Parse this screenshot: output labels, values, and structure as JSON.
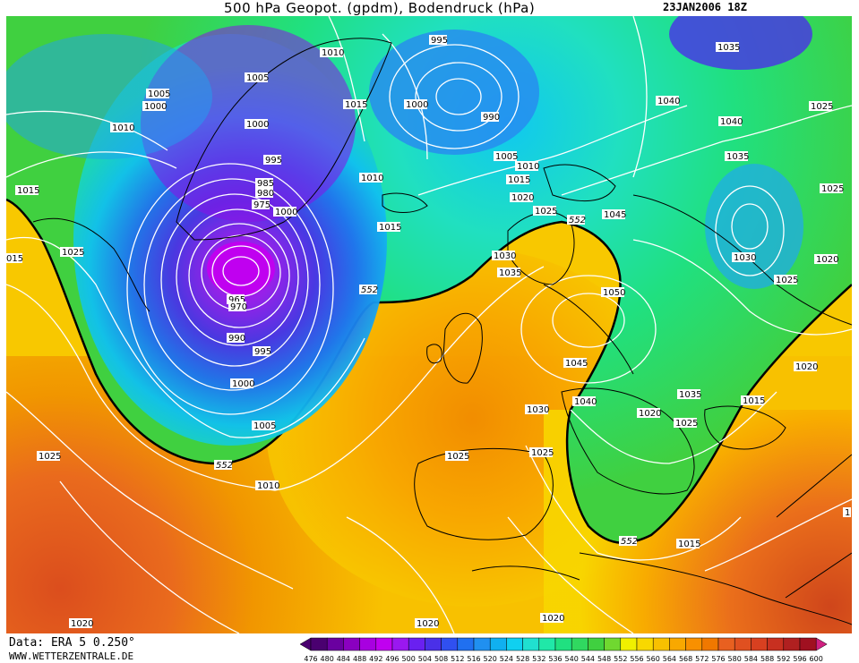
{
  "header": {
    "title": "500 hPa Geopot. (gpdm), Bodendruck (hPa)",
    "date": "23JAN2006 18Z"
  },
  "footer": {
    "data_source": "Data: ERA 5 0.250°",
    "website": "WWW.WETTERZENTRALE.DE"
  },
  "legend": {
    "values": [
      "476",
      "480",
      "484",
      "488",
      "492",
      "496",
      "500",
      "504",
      "508",
      "512",
      "516",
      "520",
      "524",
      "528",
      "532",
      "536",
      "540",
      "544",
      "548",
      "552",
      "556",
      "560",
      "564",
      "568",
      "572",
      "576",
      "580",
      "584",
      "588",
      "592",
      "596",
      "600"
    ],
    "colors": [
      "#4a0070",
      "#6a00a0",
      "#8a00c0",
      "#a800e0",
      "#c000f0",
      "#9a18f0",
      "#6a20f0",
      "#4a30e8",
      "#3050f0",
      "#2070f0",
      "#2090f0",
      "#10b0f0",
      "#10d0f0",
      "#20e0d0",
      "#20e8a8",
      "#20e080",
      "#30d860",
      "#40d040",
      "#70d830",
      "#f0f000",
      "#f8d800",
      "#f8c000",
      "#f8a800",
      "#f89000",
      "#f07800",
      "#e86020",
      "#e05020",
      "#d84020",
      "#c83020",
      "#b02020",
      "#a01020",
      "#d02080"
    ]
  },
  "pressure_labels": [
    {
      "id": "p1",
      "text": "1010"
    },
    {
      "id": "p2",
      "text": "1005"
    },
    {
      "id": "p3",
      "text": "1000"
    },
    {
      "id": "p4",
      "text": "1005"
    },
    {
      "id": "p5",
      "text": "1000"
    },
    {
      "id": "p6",
      "text": "1010"
    },
    {
      "id": "p7",
      "text": "995"
    },
    {
      "id": "p8",
      "text": "1015"
    },
    {
      "id": "p9",
      "text": "1000"
    },
    {
      "id": "p10",
      "text": "990"
    },
    {
      "id": "p11",
      "text": "1040"
    },
    {
      "id": "p12",
      "text": "1040"
    },
    {
      "id": "p13",
      "text": "1025"
    },
    {
      "id": "p14",
      "text": "1035"
    },
    {
      "id": "p15",
      "text": "1035"
    },
    {
      "id": "p16",
      "text": "1025"
    },
    {
      "id": "p17",
      "text": "1015"
    },
    {
      "id": "p18",
      "text": "995"
    },
    {
      "id": "p19",
      "text": "985"
    },
    {
      "id": "p20",
      "text": "980"
    },
    {
      "id": "p21",
      "text": "975"
    },
    {
      "id": "p22",
      "text": "1000"
    },
    {
      "id": "p23",
      "text": "1010"
    },
    {
      "id": "p24",
      "text": "1005"
    },
    {
      "id": "p25",
      "text": "1010"
    },
    {
      "id": "p26",
      "text": "1015"
    },
    {
      "id": "p27",
      "text": "1020"
    },
    {
      "id": "p28",
      "text": "1025"
    },
    {
      "id": "p29",
      "text": "1045"
    },
    {
      "id": "p30",
      "text": "1015"
    },
    {
      "id": "p31",
      "text": "1025"
    },
    {
      "id": "p32",
      "text": "015"
    },
    {
      "id": "p33",
      "text": "1030"
    },
    {
      "id": "p34",
      "text": "1035"
    },
    {
      "id": "p35",
      "text": "1050"
    },
    {
      "id": "p36",
      "text": "1030"
    },
    {
      "id": "p37",
      "text": "1020"
    },
    {
      "id": "p38",
      "text": "1025"
    },
    {
      "id": "p39",
      "text": "965"
    },
    {
      "id": "p40",
      "text": "970"
    },
    {
      "id": "p41",
      "text": "990"
    },
    {
      "id": "p42",
      "text": "995"
    },
    {
      "id": "p43",
      "text": "1000"
    },
    {
      "id": "p44",
      "text": "1005"
    },
    {
      "id": "p45",
      "text": "1045"
    },
    {
      "id": "p46",
      "text": "1040"
    },
    {
      "id": "p47",
      "text": "1035"
    },
    {
      "id": "p48",
      "text": "1020"
    },
    {
      "id": "p49",
      "text": "1025"
    },
    {
      "id": "p50",
      "text": "1015"
    },
    {
      "id": "p51",
      "text": "1020"
    },
    {
      "id": "p52",
      "text": "1030"
    },
    {
      "id": "p53",
      "text": "1025"
    },
    {
      "id": "p54",
      "text": "1025"
    },
    {
      "id": "p55",
      "text": "1025"
    },
    {
      "id": "p56",
      "text": "1010"
    },
    {
      "id": "p57",
      "text": "1015"
    },
    {
      "id": "p58",
      "text": "1020"
    },
    {
      "id": "p59",
      "text": "1020"
    },
    {
      "id": "p60",
      "text": "1020"
    },
    {
      "id": "p61",
      "text": "1"
    }
  ],
  "geopotential_labels": [
    {
      "id": "g1",
      "text": "552"
    },
    {
      "id": "g2",
      "text": "552"
    },
    {
      "id": "g3",
      "text": "552"
    },
    {
      "id": "g4",
      "text": "552"
    }
  ]
}
